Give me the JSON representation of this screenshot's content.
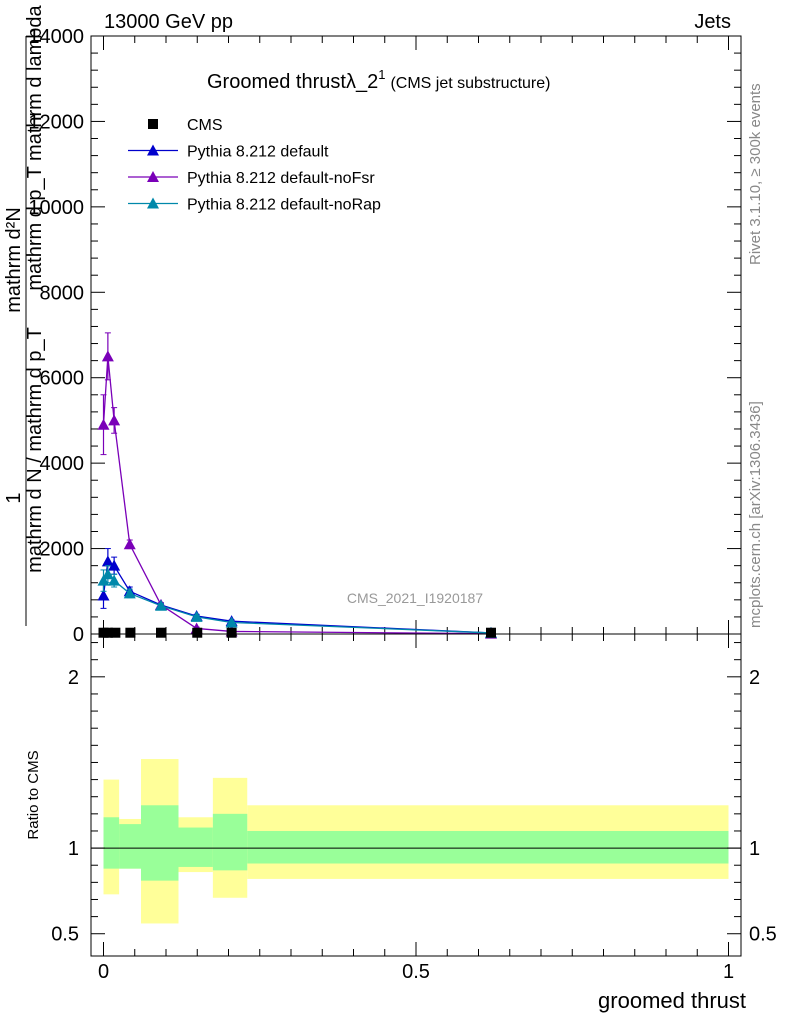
{
  "header": {
    "left": "13000 GeV pp",
    "right": "Jets"
  },
  "side": {
    "rivet": "Rivet 3.1.10, ≥ 300k events",
    "mcplots": "mcplots.cern.ch [arXiv:1306.3436]"
  },
  "chart_data": {
    "type": "line",
    "title_main": "Groomed thrustλ_2",
    "title_sup": "1",
    "title_sub": "(CMS jet substructure)",
    "watermark": "CMS_2021_I1920187",
    "xlabel": "groomed thrust",
    "ylabel_num": "mathrm d²N",
    "ylabel_den": "mathrm d p_T mathrm d lambda",
    "ylabel_one": "1",
    "ylabel_den2": "mathrm d N / mathrm d p_T",
    "xlim": [
      -0.02,
      1.02
    ],
    "ylim": [
      0,
      14000
    ],
    "x_ticks": [
      "0",
      "0.5",
      "1"
    ],
    "y_ticks": [
      "0",
      "2000",
      "4000",
      "6000",
      "8000",
      "10000",
      "12000",
      "14000"
    ],
    "legend": [
      {
        "name": "CMS",
        "color": "#000000",
        "marker": "square"
      },
      {
        "name": "Pythia 8.212 default",
        "color": "#0000cc",
        "marker": "triangle"
      },
      {
        "name": "Pythia 8.212 default-noFsr",
        "color": "#7a00b8",
        "marker": "triangle"
      },
      {
        "name": "Pythia 8.212 default-noRap",
        "color": "#0088aa",
        "marker": "triangle"
      }
    ],
    "cms": {
      "x": [
        0.0,
        0.007,
        0.019,
        0.043,
        0.092,
        0.15,
        0.205,
        0.62
      ],
      "y": [
        30,
        30,
        30,
        30,
        30,
        30,
        30,
        30
      ]
    },
    "series": [
      {
        "name": "Pythia 8.212 default",
        "color": "#0000cc",
        "x": [
          0.0,
          0.007,
          0.017,
          0.042,
          0.092,
          0.149,
          0.205,
          0.62
        ],
        "y": [
          900,
          1700,
          1600,
          1000,
          680,
          420,
          300,
          25
        ],
        "err": [
          300,
          300,
          200,
          100,
          50,
          40,
          30,
          10
        ]
      },
      {
        "name": "Pythia 8.212 default-noFsr",
        "color": "#7a00b8",
        "x": [
          0.0,
          0.007,
          0.017,
          0.042,
          0.092,
          0.149,
          0.205,
          0.62
        ],
        "y": [
          4900,
          6500,
          5000,
          2100,
          680,
          130,
          60,
          8
        ],
        "err": [
          700,
          550,
          300,
          100,
          50,
          30,
          20,
          5
        ]
      },
      {
        "name": "Pythia 8.212 default-noRap",
        "color": "#0088aa",
        "x": [
          0.0,
          0.007,
          0.017,
          0.042,
          0.092,
          0.149,
          0.205,
          0.62
        ],
        "y": [
          1250,
          1400,
          1250,
          950,
          660,
          400,
          270,
          25
        ],
        "err": [
          250,
          200,
          150,
          100,
          50,
          40,
          30,
          10
        ]
      }
    ],
    "ratio": {
      "ylabel": "Ratio to CMS",
      "ylim": [
        0.37,
        2.25
      ],
      "y_ticks": [
        "0.5",
        "1",
        "2"
      ],
      "bands": [
        {
          "x0": 0.0,
          "x1": 0.025,
          "inner": [
            0.88,
            1.18
          ],
          "outer": [
            0.73,
            1.4
          ]
        },
        {
          "x0": 0.025,
          "x1": 0.06,
          "inner": [
            0.88,
            1.14
          ],
          "outer": [
            0.88,
            1.17
          ]
        },
        {
          "x0": 0.06,
          "x1": 0.12,
          "inner": [
            0.81,
            1.25
          ],
          "outer": [
            0.56,
            1.52
          ]
        },
        {
          "x0": 0.12,
          "x1": 0.175,
          "inner": [
            0.89,
            1.12
          ],
          "outer": [
            0.86,
            1.18
          ]
        },
        {
          "x0": 0.175,
          "x1": 0.23,
          "inner": [
            0.87,
            1.2
          ],
          "outer": [
            0.71,
            1.41
          ]
        },
        {
          "x0": 0.23,
          "x1": 1.0,
          "inner": [
            0.91,
            1.1
          ],
          "outer": [
            0.82,
            1.25
          ]
        }
      ]
    }
  }
}
